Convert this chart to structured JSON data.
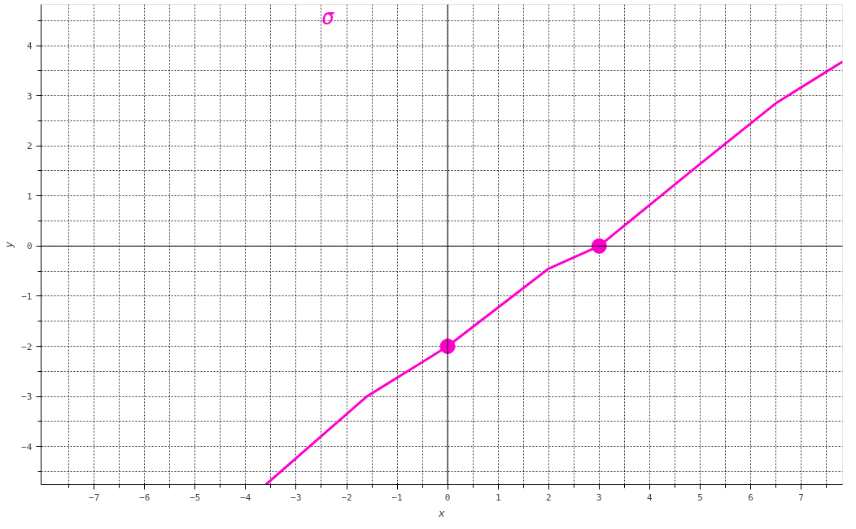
{
  "chart_data": {
    "type": "line",
    "xlabel": "x",
    "ylabel": "y",
    "annotations": [
      "σ"
    ],
    "xlim": [
      -8.05,
      7.82
    ],
    "ylim": [
      -4.76,
      4.82
    ],
    "xticks": [
      -7,
      -6,
      -5,
      -4,
      -3,
      -2,
      -1,
      0,
      1,
      2,
      3,
      4,
      5,
      6,
      7
    ],
    "yticks": [
      -4,
      -3,
      -2,
      -1,
      0,
      1,
      2,
      3,
      4
    ],
    "grid": true,
    "line_style": "solid",
    "series": [
      {
        "color": "#ff00cc",
        "x": [
          -3.6,
          -1.6,
          0,
          2,
          3,
          5,
          6.5,
          7.82
        ],
        "values": [
          -4.76,
          -3.0,
          -2,
          -0.45,
          0,
          1.64,
          2.85,
          3.68
        ],
        "marker": "none"
      },
      {
        "type": "scatter",
        "color": "#ff00cc",
        "x": [
          0,
          3
        ],
        "values": [
          -2,
          0
        ],
        "marker": "circle"
      }
    ]
  }
}
